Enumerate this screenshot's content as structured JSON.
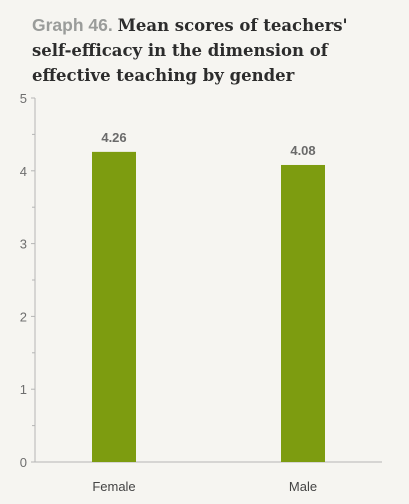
{
  "header": {
    "graph_label": "Graph 46.",
    "graph_title": "Mean scores of teachers' self-efficacy in the dimension of effective teaching by gender"
  },
  "colors": {
    "bar": "#7d9c10",
    "axis": "#b5b5b5",
    "background": "#f6f5f1"
  },
  "chart_data": {
    "type": "bar",
    "categories": [
      "Female",
      "Male"
    ],
    "values": [
      4.26,
      4.08
    ],
    "data_labels": [
      "4.26",
      "4.08"
    ],
    "title": "Mean scores of teachers' self-efficacy in the dimension of effective teaching by gender",
    "xlabel": "",
    "ylabel": "",
    "ylim": [
      0,
      5
    ],
    "yticks": [
      0,
      1,
      2,
      3,
      4,
      5
    ],
    "grid": false,
    "legend": "none"
  }
}
